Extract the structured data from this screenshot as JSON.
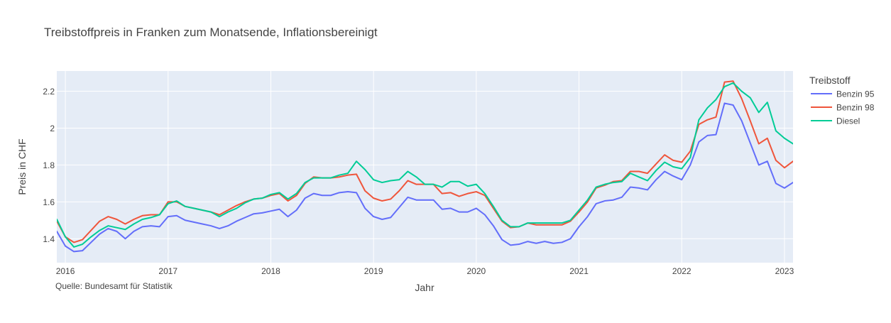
{
  "chart_data": {
    "type": "line",
    "title": "Treibstoffpreis in Franken zum Monatsende, Inflationsbereinigt",
    "xlabel": "Jahr",
    "ylabel": "Preis in CHF",
    "source_note": "Quelle: Bundesamt für Statistik",
    "legend_title": "Treibstoff",
    "legend_position": "top-right",
    "grid": true,
    "x_start": "2015-12",
    "xlim": [
      "2015-12",
      "2023-02"
    ],
    "ylim": [
      1.27,
      2.31
    ],
    "y_ticks": [
      1.4,
      1.6,
      1.8,
      2.0,
      2.2
    ],
    "y_tick_labels": [
      "1.4",
      "1.6",
      "1.8",
      "2",
      "2.2"
    ],
    "x_ticks": [
      "2016-01",
      "2017-01",
      "2018-01",
      "2019-01",
      "2020-01",
      "2021-01",
      "2022-01",
      "2023-01"
    ],
    "x_tick_labels": [
      "2016",
      "2017",
      "2018",
      "2019",
      "2020",
      "2021",
      "2022",
      "2023"
    ],
    "series": [
      {
        "name": "Benzin 95",
        "color": "#636efa",
        "values": [
          1.44,
          1.36,
          1.33,
          1.335,
          1.38,
          1.425,
          1.455,
          1.44,
          1.4,
          1.44,
          1.465,
          1.47,
          1.465,
          1.52,
          1.525,
          1.5,
          1.49,
          1.48,
          1.47,
          1.455,
          1.47,
          1.495,
          1.515,
          1.535,
          1.54,
          1.55,
          1.56,
          1.52,
          1.555,
          1.62,
          1.645,
          1.635,
          1.635,
          1.65,
          1.655,
          1.65,
          1.565,
          1.52,
          1.505,
          1.515,
          1.57,
          1.625,
          1.61,
          1.61,
          1.61,
          1.56,
          1.565,
          1.545,
          1.545,
          1.565,
          1.53,
          1.47,
          1.395,
          1.365,
          1.37,
          1.385,
          1.375,
          1.385,
          1.375,
          1.38,
          1.4,
          1.465,
          1.52,
          1.59,
          1.605,
          1.61,
          1.625,
          1.68,
          1.675,
          1.665,
          1.72,
          1.765,
          1.74,
          1.72,
          1.8,
          1.925,
          1.96,
          1.965,
          2.135,
          2.125,
          2.04,
          1.92,
          1.8,
          1.82,
          1.7,
          1.675,
          1.705
        ]
      },
      {
        "name": "Benzin 98",
        "color": "#ef553b",
        "values": [
          1.495,
          1.41,
          1.38,
          1.395,
          1.445,
          1.495,
          1.52,
          1.505,
          1.48,
          1.505,
          1.525,
          1.53,
          1.53,
          1.6,
          1.6,
          1.575,
          1.565,
          1.555,
          1.545,
          1.53,
          1.555,
          1.58,
          1.6,
          1.615,
          1.62,
          1.635,
          1.645,
          1.605,
          1.635,
          1.7,
          1.735,
          1.73,
          1.73,
          1.735,
          1.745,
          1.75,
          1.66,
          1.62,
          1.605,
          1.615,
          1.66,
          1.715,
          1.695,
          1.695,
          1.695,
          1.645,
          1.65,
          1.63,
          1.645,
          1.655,
          1.635,
          1.565,
          1.495,
          1.46,
          1.465,
          1.485,
          1.475,
          1.475,
          1.475,
          1.475,
          1.495,
          1.545,
          1.6,
          1.675,
          1.69,
          1.71,
          1.715,
          1.765,
          1.765,
          1.755,
          1.805,
          1.855,
          1.825,
          1.815,
          1.875,
          2.02,
          2.045,
          2.06,
          2.25,
          2.255,
          2.16,
          2.04,
          1.915,
          1.945,
          1.825,
          1.785,
          1.82
        ]
      },
      {
        "name": "Diesel",
        "color": "#00cc96",
        "values": [
          1.505,
          1.41,
          1.355,
          1.37,
          1.41,
          1.445,
          1.47,
          1.46,
          1.45,
          1.48,
          1.505,
          1.515,
          1.53,
          1.59,
          1.605,
          1.575,
          1.565,
          1.555,
          1.545,
          1.52,
          1.545,
          1.565,
          1.595,
          1.615,
          1.62,
          1.64,
          1.65,
          1.615,
          1.645,
          1.705,
          1.73,
          1.73,
          1.73,
          1.745,
          1.755,
          1.82,
          1.775,
          1.72,
          1.705,
          1.715,
          1.72,
          1.765,
          1.735,
          1.695,
          1.695,
          1.68,
          1.71,
          1.71,
          1.685,
          1.695,
          1.645,
          1.575,
          1.5,
          1.465,
          1.465,
          1.485,
          1.485,
          1.485,
          1.485,
          1.485,
          1.5,
          1.555,
          1.61,
          1.68,
          1.695,
          1.705,
          1.71,
          1.755,
          1.735,
          1.715,
          1.77,
          1.815,
          1.79,
          1.78,
          1.84,
          2.045,
          2.11,
          2.155,
          2.225,
          2.245,
          2.2,
          2.165,
          2.085,
          2.14,
          1.985,
          1.945,
          1.915
        ]
      }
    ]
  }
}
